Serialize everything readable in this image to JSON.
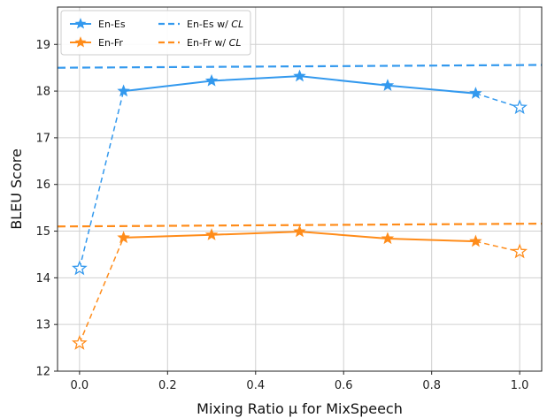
{
  "chart_data": {
    "type": "line",
    "xlabel": "Mixing Ratio μ for MixSpeech",
    "ylabel": "BLEU Score",
    "xlim": [
      -0.05,
      1.05
    ],
    "ylim": [
      12,
      19.8
    ],
    "x_ticks": [
      "0.0",
      "0.2",
      "0.4",
      "0.6",
      "0.8",
      "1.0"
    ],
    "y_ticks": [
      "12",
      "13",
      "14",
      "15",
      "16",
      "17",
      "18",
      "19"
    ],
    "grid": true,
    "legend_placement": "top-left",
    "legend": [
      {
        "label_main": "En-Es",
        "label_em": "",
        "color": "#3399ee",
        "style": "solid-star"
      },
      {
        "label_main": "En-Fr",
        "label_em": "",
        "color": "#ff8c1a",
        "style": "solid-star"
      },
      {
        "label_main": "En-Es w/ ",
        "label_em": "CL",
        "color": "#3399ee",
        "style": "dashed"
      },
      {
        "label_main": "En-Fr w/ ",
        "label_em": "CL",
        "color": "#ff8c1a",
        "style": "dashed"
      }
    ],
    "series": [
      {
        "name": "En-Es",
        "color": "#3399ee",
        "x": [
          0.0,
          0.1,
          0.3,
          0.5,
          0.7,
          0.9,
          1.0
        ],
        "y": [
          14.2,
          18.0,
          18.22,
          18.32,
          18.12,
          17.95,
          17.65
        ],
        "solid_range": [
          1,
          5
        ],
        "hollow_points": [
          0,
          6
        ]
      },
      {
        "name": "En-Fr",
        "color": "#ff8c1a",
        "x": [
          0.0,
          0.1,
          0.3,
          0.5,
          0.7,
          0.9,
          1.0
        ],
        "y": [
          12.6,
          14.86,
          14.92,
          14.99,
          14.84,
          14.78,
          14.56
        ],
        "solid_range": [
          1,
          5
        ],
        "hollow_points": [
          0,
          6
        ]
      }
    ],
    "reference_lines": [
      {
        "name": "En-Es w/ CL",
        "color": "#3399ee",
        "x": [
          -0.05,
          1.05
        ],
        "y": [
          18.5,
          18.56
        ]
      },
      {
        "name": "En-Fr w/ CL",
        "color": "#ff8c1a",
        "x": [
          -0.05,
          1.05
        ],
        "y": [
          15.1,
          15.16
        ]
      }
    ]
  }
}
